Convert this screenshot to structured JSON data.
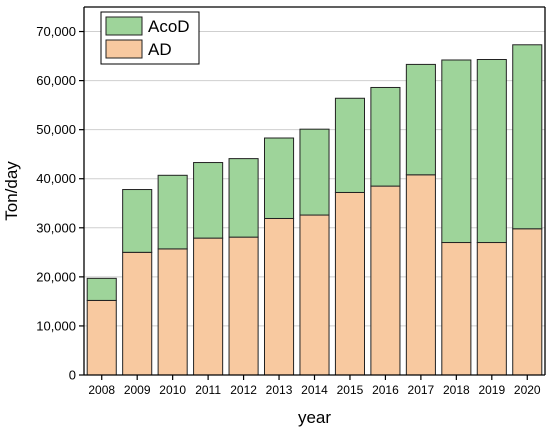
{
  "chart_data": {
    "type": "bar",
    "stacked": true,
    "xlabel": "year",
    "ylabel": "Ton/day",
    "ylim": [
      0,
      75000
    ],
    "yticks": [
      0,
      10000,
      20000,
      30000,
      40000,
      50000,
      60000,
      70000
    ],
    "ytick_labels": [
      "0",
      "10,000",
      "20,000",
      "30,000",
      "40,000",
      "50,000",
      "60,000",
      "70,000"
    ],
    "grid": "horizontal",
    "legend": "top-left",
    "categories": [
      "2008",
      "2009",
      "2010",
      "2011",
      "2012",
      "2013",
      "2014",
      "2015",
      "2016",
      "2017",
      "2018",
      "2019",
      "2020"
    ],
    "series": [
      {
        "name": "AD",
        "color": "#f8c9a0",
        "values": [
          15200,
          25000,
          25700,
          27900,
          28100,
          31900,
          32600,
          37200,
          38500,
          40800,
          27000,
          27000,
          29800
        ]
      },
      {
        "name": "AcoD",
        "color": "#9ed49a",
        "values": [
          4500,
          12800,
          15000,
          15400,
          16000,
          16400,
          17500,
          19200,
          20100,
          22500,
          37200,
          37300,
          37500
        ]
      }
    ]
  }
}
